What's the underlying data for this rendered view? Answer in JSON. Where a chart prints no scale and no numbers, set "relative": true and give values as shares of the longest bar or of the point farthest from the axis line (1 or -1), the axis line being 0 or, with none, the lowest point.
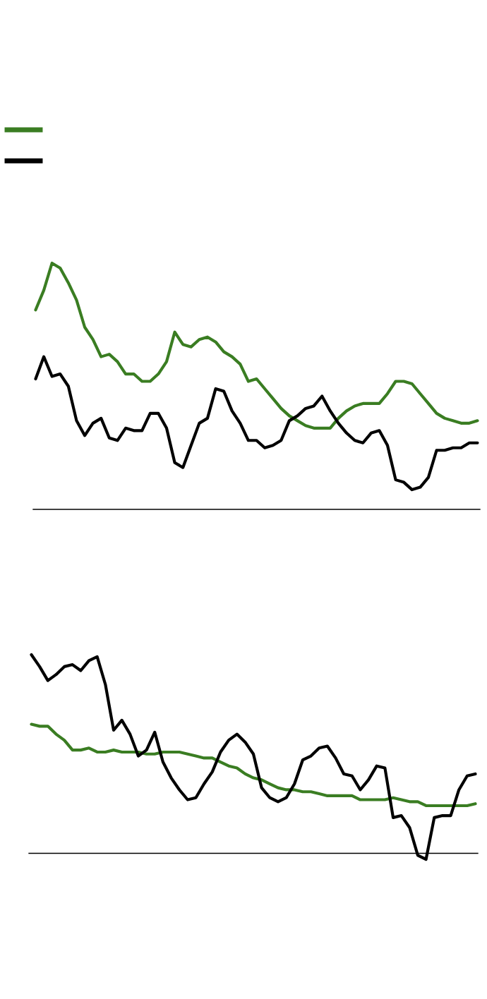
{
  "chart_data": [
    {
      "type": "line",
      "relative": true,
      "categories": [
        null,
        null,
        null,
        null,
        null,
        null,
        null,
        null,
        null,
        null,
        null,
        null,
        null,
        null,
        null,
        null,
        null,
        null,
        null,
        null,
        null,
        null,
        null,
        null,
        null,
        null,
        null,
        null,
        null,
        null,
        null,
        null,
        null,
        null,
        null,
        null,
        null,
        null,
        null,
        null,
        null,
        null,
        null,
        null,
        null,
        null,
        null,
        null,
        null,
        null,
        null,
        null,
        null,
        null,
        null
      ],
      "series": [
        {
          "color": "#3a7d22",
          "values": [
            0.81,
            0.89,
            1.0,
            0.98,
            0.92,
            0.85,
            0.74,
            0.69,
            0.62,
            0.63,
            0.6,
            0.55,
            0.55,
            0.52,
            0.52,
            0.55,
            0.6,
            0.72,
            0.67,
            0.66,
            0.69,
            0.7,
            0.68,
            0.64,
            0.62,
            0.59,
            0.52,
            0.53,
            0.49,
            0.45,
            0.41,
            0.38,
            0.36,
            0.34,
            0.33,
            0.33,
            0.33,
            0.37,
            0.4,
            0.42,
            0.43,
            0.43,
            0.43,
            0.47,
            0.52,
            0.52,
            0.51,
            0.47,
            0.43,
            0.39,
            0.37,
            0.36,
            0.35,
            0.35,
            0.36
          ]
        },
        {
          "color": "#000000",
          "values": [
            0.53,
            0.62,
            0.54,
            0.55,
            0.5,
            0.36,
            0.3,
            0.35,
            0.37,
            0.29,
            0.28,
            0.33,
            0.32,
            0.32,
            0.39,
            0.39,
            0.33,
            0.19,
            0.17,
            0.26,
            0.35,
            0.37,
            0.49,
            0.48,
            0.4,
            0.35,
            0.28,
            0.28,
            0.25,
            0.26,
            0.28,
            0.36,
            0.38,
            0.41,
            0.42,
            0.46,
            0.4,
            0.35,
            0.31,
            0.28,
            0.27,
            0.31,
            0.32,
            0.26,
            0.12,
            0.11,
            0.08,
            0.09,
            0.13,
            0.24,
            0.24,
            0.25,
            0.25,
            0.27,
            0.27
          ]
        }
      ]
    },
    {
      "type": "line",
      "relative": true,
      "categories": [
        null,
        null,
        null,
        null,
        null,
        null,
        null,
        null,
        null,
        null,
        null,
        null,
        null,
        null,
        null,
        null,
        null,
        null,
        null,
        null,
        null,
        null,
        null,
        null,
        null,
        null,
        null,
        null,
        null,
        null,
        null,
        null,
        null,
        null,
        null,
        null,
        null,
        null,
        null,
        null,
        null,
        null,
        null,
        null,
        null,
        null,
        null,
        null,
        null,
        null,
        null,
        null,
        null,
        null,
        null
      ],
      "series": [
        {
          "color": "#3a7d22",
          "values": [
            0.65,
            0.64,
            0.64,
            0.6,
            0.57,
            0.52,
            0.52,
            0.53,
            0.51,
            0.51,
            0.52,
            0.51,
            0.51,
            0.51,
            0.5,
            0.5,
            0.51,
            0.51,
            0.51,
            0.5,
            0.49,
            0.48,
            0.48,
            0.46,
            0.44,
            0.43,
            0.4,
            0.38,
            0.37,
            0.35,
            0.33,
            0.32,
            0.32,
            0.31,
            0.31,
            0.3,
            0.29,
            0.29,
            0.29,
            0.29,
            0.27,
            0.27,
            0.27,
            0.27,
            0.28,
            0.27,
            0.26,
            0.26,
            0.24,
            0.24,
            0.24,
            0.24,
            0.24,
            0.24,
            0.25
          ]
        },
        {
          "color": "#000000",
          "values": [
            1.0,
            0.94,
            0.87,
            0.9,
            0.94,
            0.95,
            0.92,
            0.97,
            0.99,
            0.85,
            0.62,
            0.67,
            0.6,
            0.49,
            0.52,
            0.61,
            0.46,
            0.38,
            0.32,
            0.27,
            0.28,
            0.35,
            0.41,
            0.51,
            0.57,
            0.6,
            0.56,
            0.5,
            0.33,
            0.28,
            0.26,
            0.28,
            0.35,
            0.47,
            0.49,
            0.53,
            0.54,
            0.48,
            0.4,
            0.39,
            0.32,
            0.37,
            0.44,
            0.43,
            0.18,
            0.19,
            0.13,
            -0.01,
            -0.03,
            0.18,
            0.19,
            0.19,
            0.32,
            0.39,
            0.4
          ]
        }
      ]
    }
  ]
}
